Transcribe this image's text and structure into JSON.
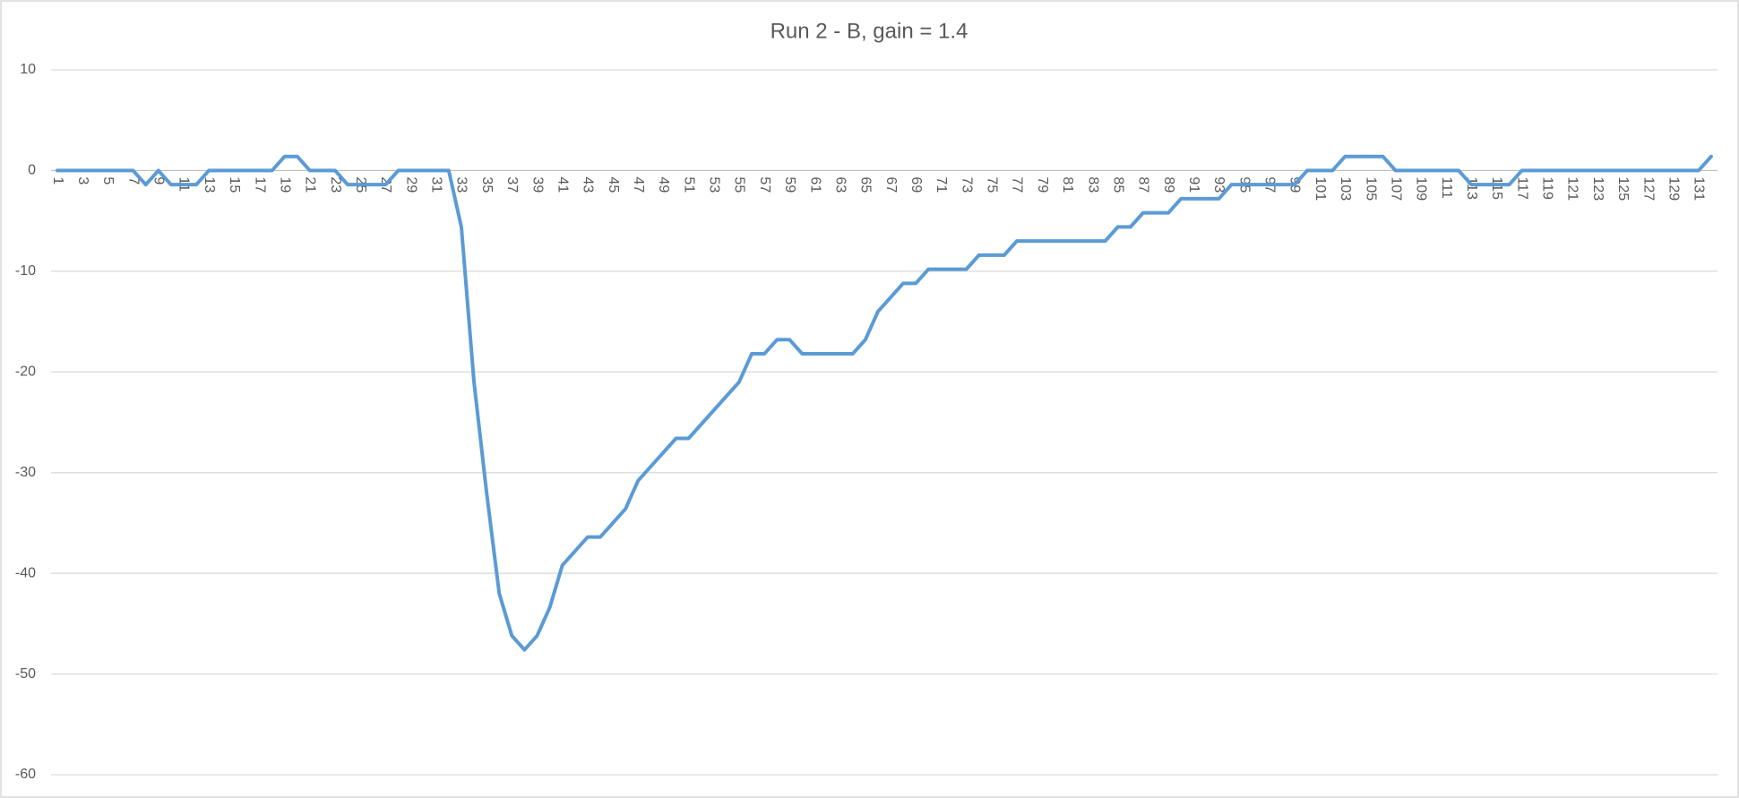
{
  "chart_data": {
    "type": "line",
    "title": "Run 2 - B, gain = 1.4",
    "categories": [
      1,
      null,
      3,
      null,
      5,
      null,
      7,
      null,
      9,
      null,
      11,
      null,
      13,
      null,
      15,
      null,
      17,
      null,
      19,
      null,
      21,
      null,
      23,
      null,
      25,
      null,
      27,
      null,
      29,
      null,
      31,
      null,
      33,
      null,
      35,
      null,
      37,
      null,
      39,
      null,
      41,
      null,
      43,
      null,
      45,
      null,
      47,
      null,
      49,
      null,
      51,
      null,
      53,
      null,
      55,
      null,
      57,
      null,
      59,
      null,
      61,
      null,
      63,
      null,
      65,
      null,
      67,
      null,
      69,
      null,
      71,
      null,
      73,
      null,
      75,
      null,
      77,
      null,
      79,
      null,
      81,
      null,
      83,
      null,
      85,
      null,
      87,
      null,
      89,
      null,
      91,
      null,
      93,
      null,
      95,
      null,
      97,
      null,
      99,
      null,
      101,
      null,
      103,
      null,
      105,
      null,
      107,
      null,
      109,
      null,
      111,
      null,
      113,
      null,
      115,
      null,
      117,
      null,
      119,
      null,
      121,
      null,
      123,
      null,
      125,
      null,
      127,
      null,
      129,
      null,
      131,
      null
    ],
    "series": [
      {
        "name": "Run 2 - B",
        "color": "#5b9bd5",
        "values": [
          0,
          0,
          0,
          0,
          0,
          0,
          0,
          -1.4,
          0,
          -1.4,
          -1.4,
          -1.4,
          0,
          0,
          0,
          0,
          0,
          0,
          1.4,
          1.4,
          0,
          0,
          0,
          -1.4,
          -1.4,
          -1.4,
          -1.4,
          0,
          0,
          0,
          0,
          0,
          -5.6,
          -21,
          -32,
          -42,
          -46.2,
          -47.6,
          -46.2,
          -43.4,
          -39.2,
          -37.8,
          -36.4,
          -36.4,
          -35,
          -33.6,
          -30.8,
          -29.4,
          -28,
          -26.6,
          -26.6,
          -25.2,
          -23.8,
          -22.4,
          -21,
          -18.2,
          -18.2,
          -16.8,
          -16.8,
          -18.2,
          -18.2,
          -18.2,
          -18.2,
          -18.2,
          -16.8,
          -14,
          -12.6,
          -11.2,
          -11.2,
          -9.8,
          -9.8,
          -9.8,
          -9.8,
          -8.4,
          -8.4,
          -8.4,
          -7,
          -7,
          -7,
          -7,
          -7,
          -7,
          -7,
          -7,
          -5.6,
          -5.6,
          -4.2,
          -4.2,
          -4.2,
          -2.8,
          -2.8,
          -2.8,
          -2.8,
          -1.4,
          -1.4,
          -1.4,
          -1.4,
          -1.4,
          -1.4,
          0,
          0,
          0,
          1.4,
          1.4,
          1.4,
          1.4,
          0,
          0,
          0,
          0,
          0,
          0,
          -1.4,
          -1.4,
          -1.4,
          -1.4,
          0,
          0,
          0,
          0,
          0,
          0,
          0,
          0,
          0,
          0,
          0,
          0,
          0,
          0,
          0,
          1.4
        ]
      }
    ],
    "ylim": [
      -60,
      10
    ],
    "yticks": [
      -60,
      -50,
      -40,
      -30,
      -20,
      -10,
      0,
      10
    ],
    "grid": true
  }
}
